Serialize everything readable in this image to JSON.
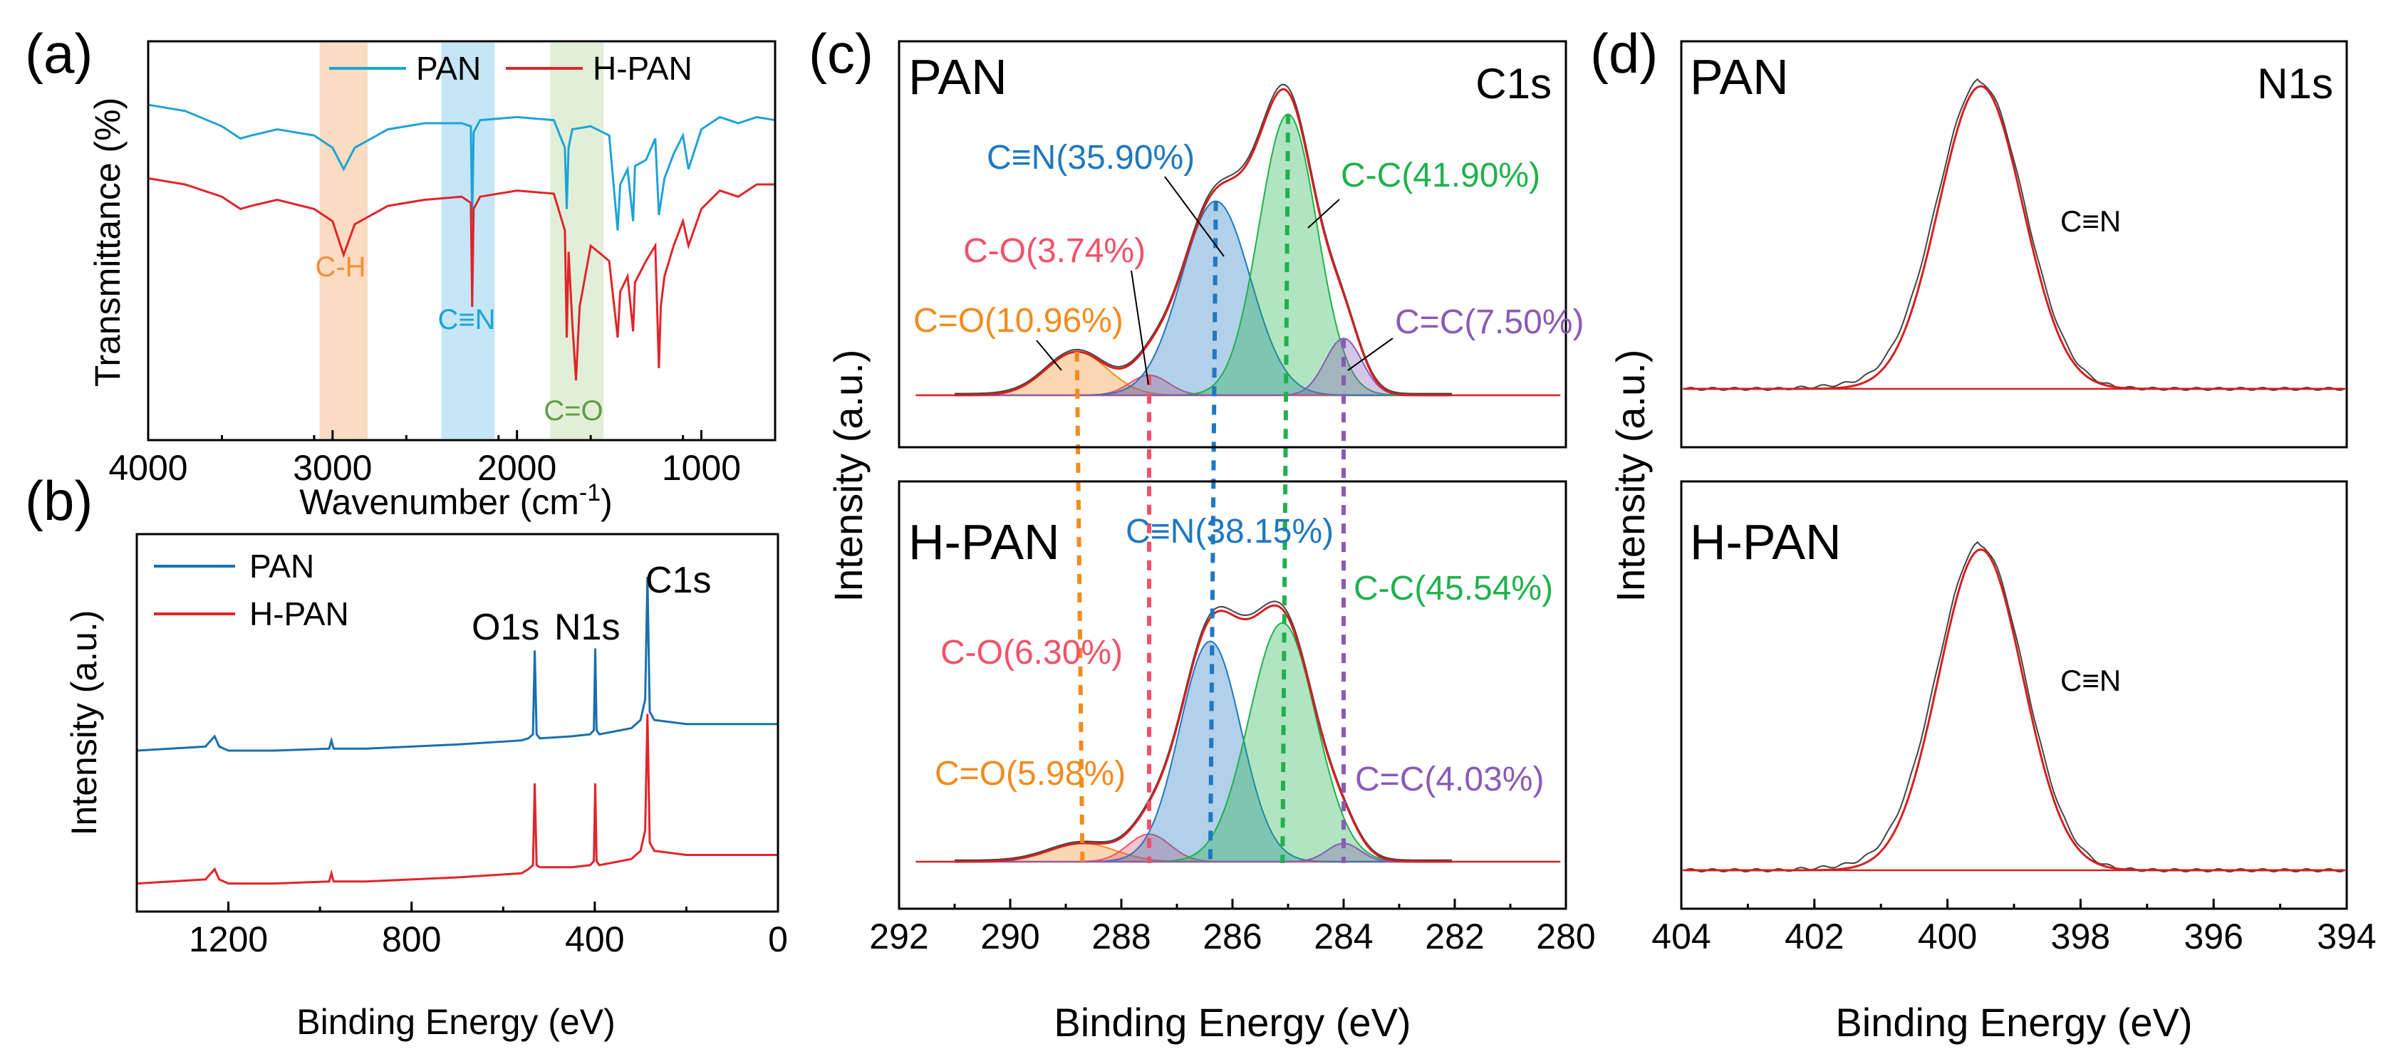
{
  "colors": {
    "pan": "#1fa3d6",
    "hpan": "#e0252a",
    "pan_survey": "#1a6fae",
    "ch_band": "#f9dcc2",
    "cn_band": "#c4e6f6",
    "co_band": "#e1efd8",
    "ch_text": "#f28f3b",
    "cn_text": "#1fa3d6",
    "co_text": "#5f9e43",
    "peak_orange": "#f28b1f",
    "peak_pink": "#f0516a",
    "peak_blue": "#1f78c1",
    "peak_green": "#1fb14c",
    "peak_purple": "#8a5bb5",
    "envelope": "#d42020",
    "raw": "#444444"
  },
  "chart_data": [
    {
      "panel": "(a)",
      "type": "line",
      "title": "",
      "xlabel": "Wavenumber (cm",
      "xlabel_sup": "-1",
      "xlabel_end": ")",
      "ylabel": "Transmittance (%)",
      "xlim": [
        4000,
        600
      ],
      "xticks": [
        "4000",
        "3000",
        "2000",
        "1000"
      ],
      "legend": [
        "PAN",
        "H-PAN"
      ],
      "bands": [
        {
          "label": "C-H",
          "from": 3070,
          "to": 2810
        },
        {
          "label": "C≡N",
          "from": 2410,
          "to": 2120
        },
        {
          "label": "C=O",
          "from": 1820,
          "to": 1530
        }
      ],
      "series": [
        {
          "name": "PAN",
          "x": [
            4000,
            3800,
            3600,
            3500,
            3440,
            3300,
            3100,
            3000,
            2940,
            2880,
            2700,
            2500,
            2300,
            2250,
            2243,
            2235,
            2200,
            2000,
            1800,
            1740,
            1730,
            1720,
            1700,
            1600,
            1500,
            1454,
            1440,
            1400,
            1370,
            1360,
            1300,
            1250,
            1230,
            1200,
            1150,
            1100,
            1070,
            1000,
            900,
            800,
            700,
            600
          ],
          "y": [
            96,
            94,
            89,
            85,
            86,
            88,
            86,
            82,
            75,
            82,
            88,
            90,
            90,
            89,
            58,
            87,
            91,
            92,
            91,
            82,
            62,
            82,
            88,
            89,
            86,
            55,
            70,
            75,
            58,
            76,
            78,
            85,
            60,
            72,
            80,
            86,
            75,
            88,
            92,
            90,
            92,
            91
          ]
        },
        {
          "name": "H-PAN",
          "x": [
            4000,
            3800,
            3600,
            3500,
            3440,
            3300,
            3100,
            3000,
            2940,
            2880,
            2700,
            2500,
            2300,
            2250,
            2243,
            2235,
            2200,
            2000,
            1800,
            1740,
            1730,
            1720,
            1700,
            1680,
            1660,
            1600,
            1500,
            1454,
            1440,
            1400,
            1370,
            1360,
            1300,
            1250,
            1230,
            1220,
            1200,
            1150,
            1100,
            1070,
            1000,
            900,
            800,
            700,
            600
          ],
          "y": [
            72,
            70,
            66,
            62,
            63,
            65,
            62,
            58,
            47,
            57,
            63,
            65,
            66,
            64,
            30,
            62,
            66,
            68,
            67,
            55,
            20,
            48,
            25,
            6,
            30,
            50,
            45,
            20,
            35,
            40,
            22,
            38,
            45,
            50,
            10,
            30,
            40,
            50,
            58,
            50,
            62,
            68,
            66,
            70,
            70
          ]
        }
      ]
    },
    {
      "panel": "(b)",
      "type": "line",
      "title": "",
      "xlabel": "Binding Energy (eV)",
      "ylabel": "Intensity (a.u.)",
      "xlim": [
        1400,
        0
      ],
      "xticks": [
        "1200",
        "800",
        "400",
        "0"
      ],
      "legend": [
        "PAN",
        "H-PAN"
      ],
      "annotations": [
        "O1s",
        "N1s",
        "C1s"
      ],
      "series": [
        {
          "name": "PAN",
          "x": [
            1400,
            1250,
            1230,
            1220,
            1200,
            1100,
            980,
            975,
            970,
            900,
            700,
            560,
            545,
            535,
            531,
            527,
            520,
            450,
            410,
            402,
            399,
            396,
            390,
            320,
            300,
            290,
            285,
            280,
            270,
            200,
            100,
            0
          ],
          "y": [
            15,
            17,
            22,
            17,
            15,
            15,
            16,
            20,
            16,
            16,
            18,
            20,
            21,
            23,
            64,
            23,
            21,
            22,
            23,
            25,
            65,
            25,
            23,
            26,
            30,
            40,
            100,
            34,
            30,
            28,
            28,
            28
          ]
        },
        {
          "name": "H-PAN",
          "x": [
            1400,
            1250,
            1230,
            1220,
            1200,
            1100,
            980,
            975,
            970,
            900,
            700,
            560,
            545,
            535,
            531,
            527,
            520,
            450,
            410,
            402,
            399,
            396,
            390,
            320,
            300,
            290,
            285,
            280,
            270,
            200,
            100,
            0
          ],
          "y": [
            -50,
            -48,
            -43,
            -48,
            -50,
            -50,
            -49,
            -45,
            -49,
            -49,
            -47,
            -45,
            -43,
            -41,
            -1,
            -41,
            -42,
            -42,
            -41,
            -39,
            -1,
            -39,
            -41,
            -38,
            -34,
            -24,
            33,
            -30,
            -34,
            -36,
            -36,
            -36
          ]
        }
      ]
    },
    {
      "panel": "(c)",
      "type": "line",
      "title": "C1s",
      "xlabel": "Binding Energy (eV)",
      "ylabel": "Intensity (a.u.)",
      "xlim": [
        292,
        280
      ],
      "xticks": [
        "292",
        "290",
        "288",
        "286",
        "284",
        "282",
        "280"
      ],
      "subplots": [
        {
          "sample": "PAN",
          "peaks": [
            {
              "label": "C=O(10.96%)",
              "center": 288.8,
              "height": 0.13,
              "sigma": 0.55,
              "color": "peak_orange"
            },
            {
              "label": "C-O(3.74%)",
              "center": 287.5,
              "height": 0.06,
              "sigma": 0.35,
              "color": "peak_pink"
            },
            {
              "label": "C≡N(35.90%)",
              "center": 286.3,
              "height": 0.58,
              "sigma": 0.62,
              "color": "peak_blue"
            },
            {
              "label": "C-C(41.90%)",
              "center": 285.0,
              "height": 0.84,
              "sigma": 0.52,
              "color": "peak_green"
            },
            {
              "label": "C=C(7.50%)",
              "center": 284.0,
              "height": 0.17,
              "sigma": 0.33,
              "color": "peak_purple"
            }
          ]
        },
        {
          "sample": "H-PAN",
          "peaks": [
            {
              "label": "C=O(5.98%)",
              "center": 288.7,
              "height": 0.06,
              "sigma": 0.6,
              "color": "peak_orange"
            },
            {
              "label": "C-O(6.30%)",
              "center": 287.5,
              "height": 0.09,
              "sigma": 0.38,
              "color": "peak_pink"
            },
            {
              "label": "C≡N(38.15%)",
              "center": 286.4,
              "height": 0.72,
              "sigma": 0.55,
              "color": "peak_blue"
            },
            {
              "label": "C-C(45.54%)",
              "center": 285.1,
              "height": 0.78,
              "sigma": 0.6,
              "color": "peak_green"
            },
            {
              "label": "C=C(4.03%)",
              "center": 284.0,
              "height": 0.06,
              "sigma": 0.3,
              "color": "peak_purple"
            }
          ]
        }
      ]
    },
    {
      "panel": "(d)",
      "type": "line",
      "title": "N1s",
      "xlabel": "Binding Energy (eV)",
      "ylabel": "Intensity (a.u.)",
      "xlim": [
        404,
        394
      ],
      "xticks": [
        "404",
        "402",
        "400",
        "398",
        "396",
        "394"
      ],
      "subplots": [
        {
          "sample": "PAN",
          "peak_label": "C≡N",
          "center": 399.5,
          "height": 0.85,
          "sigma": 0.63
        },
        {
          "sample": "H-PAN",
          "peak_label": "C≡N",
          "center": 399.5,
          "height": 0.85,
          "sigma": 0.63
        }
      ]
    }
  ]
}
